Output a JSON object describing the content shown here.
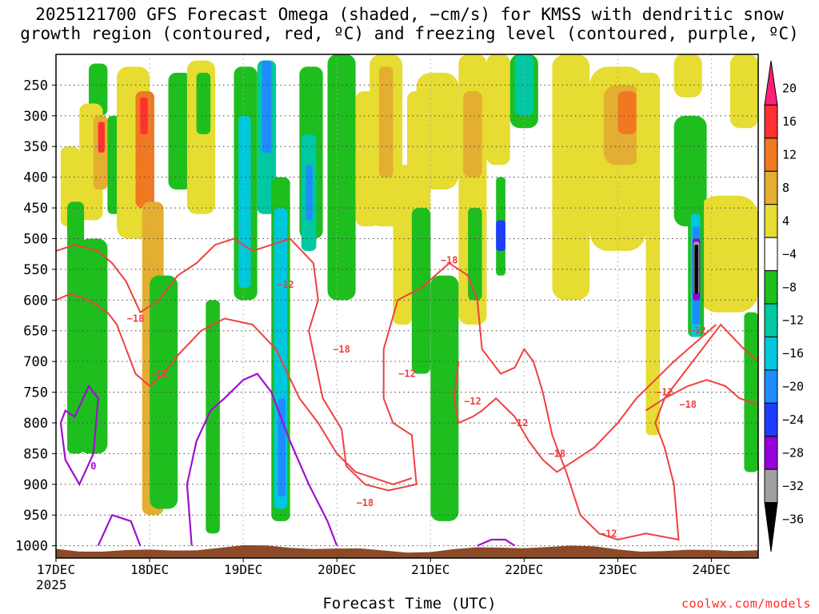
{
  "title_line1": "2025121700 GFS Forecast Omega (shaded, −cm/s) for KMSS with dendritic snow",
  "title_line2": "growth region (contoured, red, ºC) and freezing level (contoured, purple, ºC)",
  "credit": "coolwx.com/models",
  "chart_data": {
    "type": "heatmap",
    "title": "2025121700 GFS Forecast Omega (shaded, −cm/s) for KMSS with dendritic snow growth region (contoured, red, ºC) and freezing level (contoured, purple, ºC)",
    "xlabel": "Forecast Time (UTC)",
    "year_label": "2025",
    "x_ticks": [
      "17DEC",
      "18DEC",
      "19DEC",
      "20DEC",
      "21DEC",
      "22DEC",
      "23DEC",
      "24DEC"
    ],
    "x_range_days": [
      0,
      7.5
    ],
    "y_ticks": [
      250,
      300,
      350,
      400,
      450,
      500,
      550,
      600,
      650,
      700,
      750,
      800,
      850,
      900,
      950,
      1000
    ],
    "y_range_hpa": [
      200,
      1020
    ],
    "colorbar": {
      "labels": [
        "20",
        "16",
        "12",
        "8",
        "4",
        "−4",
        "−8",
        "−12",
        "−16",
        "−20",
        "−24",
        "−28",
        "−32",
        "−36"
      ],
      "colors": [
        "#ff1e78",
        "#ff3030",
        "#f07820",
        "#e4ae30",
        "#e6dc32",
        "#ffffff",
        "#1ebe1e",
        "#00c8a0",
        "#00c8dc",
        "#1e8cff",
        "#1e3cff",
        "#9600dc",
        "#a0a0a0",
        "#000000"
      ]
    },
    "contour_labels": {
      "red": [
        "−18",
        "−12",
        "−12",
        "−18",
        "−18",
        "−12",
        "−12",
        "−12",
        "−18",
        "−12",
        "−12",
        "−18",
        "−12",
        "−18"
      ],
      "purple": [
        "0"
      ]
    },
    "shaded_regions": [
      {
        "t0": 0.35,
        "t1": 0.55,
        "p0": 215,
        "p1": 300,
        "c": "#1ebe1e"
      },
      {
        "t0": 0.25,
        "t1": 0.5,
        "p0": 280,
        "p1": 470,
        "c": "#e6dc32"
      },
      {
        "t0": 0.4,
        "t1": 0.55,
        "p0": 300,
        "p1": 420,
        "c": "#e4ae30"
      },
      {
        "t0": 0.45,
        "t1": 0.52,
        "p0": 310,
        "p1": 360,
        "c": "#ff3030"
      },
      {
        "t0": 0.55,
        "t1": 0.7,
        "p0": 300,
        "p1": 460,
        "c": "#1ebe1e"
      },
      {
        "t0": 0.05,
        "t1": 0.25,
        "p0": 350,
        "p1": 480,
        "c": "#e6dc32"
      },
      {
        "t0": 0.12,
        "t1": 0.3,
        "p0": 440,
        "p1": 850,
        "c": "#1ebe1e"
      },
      {
        "t0": 0.25,
        "t1": 0.55,
        "p0": 500,
        "p1": 850,
        "c": "#1ebe1e"
      },
      {
        "t0": 0.65,
        "t1": 1.0,
        "p0": 220,
        "p1": 500,
        "c": "#e6dc32"
      },
      {
        "t0": 0.85,
        "t1": 1.05,
        "p0": 260,
        "p1": 450,
        "c": "#f07820"
      },
      {
        "t0": 0.9,
        "t1": 0.98,
        "p0": 270,
        "p1": 330,
        "c": "#ff3030"
      },
      {
        "t0": 0.92,
        "t1": 1.15,
        "p0": 440,
        "p1": 950,
        "c": "#e4ae30"
      },
      {
        "t0": 1.2,
        "t1": 1.45,
        "p0": 230,
        "p1": 420,
        "c": "#1ebe1e"
      },
      {
        "t0": 1.0,
        "t1": 1.3,
        "p0": 560,
        "p1": 940,
        "c": "#1ebe1e"
      },
      {
        "t0": 1.4,
        "t1": 1.7,
        "p0": 210,
        "p1": 460,
        "c": "#e6dc32"
      },
      {
        "t0": 1.5,
        "t1": 1.65,
        "p0": 230,
        "p1": 330,
        "c": "#1ebe1e"
      },
      {
        "t0": 1.6,
        "t1": 1.75,
        "p0": 600,
        "p1": 980,
        "c": "#1ebe1e"
      },
      {
        "t0": 1.9,
        "t1": 2.15,
        "p0": 220,
        "p1": 600,
        "c": "#1ebe1e"
      },
      {
        "t0": 1.95,
        "t1": 2.08,
        "p0": 300,
        "p1": 580,
        "c": "#00c8dc"
      },
      {
        "t0": 2.15,
        "t1": 2.35,
        "p0": 210,
        "p1": 460,
        "c": "#00c8a0"
      },
      {
        "t0": 2.2,
        "t1": 2.3,
        "p0": 210,
        "p1": 360,
        "c": "#1e8cff"
      },
      {
        "t0": 2.3,
        "t1": 2.5,
        "p0": 400,
        "p1": 960,
        "c": "#1ebe1e"
      },
      {
        "t0": 2.33,
        "t1": 2.47,
        "p0": 450,
        "p1": 940,
        "c": "#00c8dc"
      },
      {
        "t0": 2.37,
        "t1": 2.45,
        "p0": 760,
        "p1": 920,
        "c": "#1e8cff"
      },
      {
        "t0": 2.6,
        "t1": 2.85,
        "p0": 220,
        "p1": 500,
        "c": "#1ebe1e"
      },
      {
        "t0": 2.62,
        "t1": 2.78,
        "p0": 330,
        "p1": 520,
        "c": "#00c8a0"
      },
      {
        "t0": 2.67,
        "t1": 2.74,
        "p0": 380,
        "p1": 470,
        "c": "#1e8cff"
      },
      {
        "t0": 2.9,
        "t1": 3.2,
        "p0": 200,
        "p1": 600,
        "c": "#1ebe1e"
      },
      {
        "t0": 3.2,
        "t1": 3.45,
        "p0": 260,
        "p1": 480,
        "c": "#e6dc32"
      },
      {
        "t0": 3.35,
        "t1": 3.7,
        "p0": 200,
        "p1": 480,
        "c": "#e6dc32"
      },
      {
        "t0": 3.45,
        "t1": 3.6,
        "p0": 220,
        "p1": 400,
        "c": "#e4ae30"
      },
      {
        "t0": 3.6,
        "t1": 3.8,
        "p0": 380,
        "p1": 640,
        "c": "#e6dc32"
      },
      {
        "t0": 3.75,
        "t1": 4.0,
        "p0": 260,
        "p1": 460,
        "c": "#e6dc32"
      },
      {
        "t0": 3.8,
        "t1": 4.0,
        "p0": 450,
        "p1": 720,
        "c": "#1ebe1e"
      },
      {
        "t0": 3.85,
        "t1": 4.3,
        "p0": 230,
        "p1": 420,
        "c": "#e6dc32"
      },
      {
        "t0": 4.0,
        "t1": 4.3,
        "p0": 560,
        "p1": 960,
        "c": "#1ebe1e"
      },
      {
        "t0": 4.3,
        "t1": 4.6,
        "p0": 200,
        "p1": 640,
        "c": "#e6dc32"
      },
      {
        "t0": 4.35,
        "t1": 4.55,
        "p0": 260,
        "p1": 400,
        "c": "#e4ae30"
      },
      {
        "t0": 4.4,
        "t1": 4.55,
        "p0": 450,
        "p1": 600,
        "c": "#1ebe1e"
      },
      {
        "t0": 4.6,
        "t1": 4.85,
        "p0": 200,
        "p1": 380,
        "c": "#e6dc32"
      },
      {
        "t0": 4.7,
        "t1": 4.8,
        "p0": 400,
        "p1": 560,
        "c": "#1ebe1e"
      },
      {
        "t0": 4.7,
        "t1": 4.8,
        "p0": 470,
        "p1": 520,
        "c": "#1e3cff"
      },
      {
        "t0": 4.85,
        "t1": 5.15,
        "p0": 200,
        "p1": 320,
        "c": "#1ebe1e"
      },
      {
        "t0": 4.9,
        "t1": 5.1,
        "p0": 200,
        "p1": 300,
        "c": "#00c8a0"
      },
      {
        "t0": 5.3,
        "t1": 5.7,
        "p0": 200,
        "p1": 600,
        "c": "#e6dc32"
      },
      {
        "t0": 5.7,
        "t1": 6.3,
        "p0": 220,
        "p1": 520,
        "c": "#e6dc32"
      },
      {
        "t0": 5.85,
        "t1": 6.25,
        "p0": 250,
        "p1": 380,
        "c": "#e4ae30"
      },
      {
        "t0": 6.0,
        "t1": 6.2,
        "p0": 260,
        "p1": 330,
        "c": "#f07820"
      },
      {
        "t0": 6.2,
        "t1": 6.45,
        "p0": 230,
        "p1": 420,
        "c": "#e6dc32"
      },
      {
        "t0": 6.3,
        "t1": 6.45,
        "p0": 380,
        "p1": 820,
        "c": "#e6dc32"
      },
      {
        "t0": 6.6,
        "t1": 6.95,
        "p0": 300,
        "p1": 480,
        "c": "#1ebe1e"
      },
      {
        "t0": 6.85,
        "t1": 7.5,
        "p0": 430,
        "p1": 620,
        "c": "#e6dc32"
      },
      {
        "t0": 6.75,
        "t1": 6.92,
        "p0": 430,
        "p1": 660,
        "c": "#1ebe1e"
      },
      {
        "t0": 6.78,
        "t1": 6.88,
        "p0": 460,
        "p1": 660,
        "c": "#00c8dc"
      },
      {
        "t0": 6.8,
        "t1": 6.88,
        "p0": 480,
        "p1": 640,
        "c": "#1e8cff"
      },
      {
        "t0": 6.8,
        "t1": 6.88,
        "p0": 500,
        "p1": 600,
        "c": "#9600dc"
      },
      {
        "t0": 6.81,
        "t1": 6.87,
        "p0": 505,
        "p1": 590,
        "c": "#a0a0a0"
      },
      {
        "t0": 6.82,
        "t1": 6.86,
        "p0": 510,
        "p1": 590,
        "c": "#000000"
      },
      {
        "t0": 6.6,
        "t1": 6.9,
        "p0": 200,
        "p1": 270,
        "c": "#e6dc32"
      },
      {
        "t0": 7.2,
        "t1": 7.5,
        "p0": 200,
        "p1": 320,
        "c": "#e6dc32"
      },
      {
        "t0": 7.35,
        "t1": 7.5,
        "p0": 620,
        "p1": 880,
        "c": "#1ebe1e"
      }
    ],
    "freezing_contours": [
      [
        [
          0.05,
          800
        ],
        [
          0.1,
          860
        ],
        [
          0.25,
          900
        ],
        [
          0.4,
          850
        ],
        [
          0.45,
          760
        ],
        [
          0.35,
          740
        ],
        [
          0.2,
          790
        ],
        [
          0.1,
          780
        ],
        [
          0.05,
          800
        ]
      ],
      [
        [
          0.45,
          1000
        ],
        [
          0.6,
          950
        ],
        [
          0.8,
          960
        ],
        [
          0.9,
          1000
        ]
      ],
      [
        [
          1.45,
          1000
        ],
        [
          1.4,
          900
        ],
        [
          1.5,
          830
        ],
        [
          1.65,
          780
        ],
        [
          1.8,
          760
        ],
        [
          2.0,
          730
        ],
        [
          2.15,
          720
        ],
        [
          2.3,
          750
        ],
        [
          2.5,
          830
        ],
        [
          2.7,
          900
        ],
        [
          2.9,
          960
        ],
        [
          3.0,
          1000
        ]
      ],
      [
        [
          4.5,
          1000
        ],
        [
          4.65,
          990
        ],
        [
          4.8,
          990
        ],
        [
          4.9,
          1000
        ]
      ]
    ],
    "snow_growth_contours": [
      [
        [
          0.0,
          520
        ],
        [
          0.2,
          510
        ],
        [
          0.45,
          520
        ],
        [
          0.6,
          540
        ],
        [
          0.75,
          570
        ],
        [
          0.9,
          620
        ],
        [
          1.1,
          600
        ],
        [
          1.3,
          560
        ],
        [
          1.5,
          540
        ],
        [
          1.7,
          510
        ],
        [
          1.9,
          500
        ],
        [
          2.1,
          520
        ],
        [
          2.3,
          510
        ],
        [
          2.5,
          500
        ],
        [
          2.75,
          540
        ],
        [
          2.8,
          600
        ],
        [
          2.7,
          650
        ],
        [
          2.85,
          760
        ],
        [
          3.05,
          810
        ],
        [
          3.1,
          870
        ],
        [
          3.3,
          900
        ],
        [
          3.55,
          910
        ],
        [
          3.85,
          900
        ],
        [
          3.8,
          820
        ],
        [
          3.6,
          800
        ],
        [
          3.5,
          760
        ],
        [
          3.5,
          680
        ],
        [
          3.65,
          600
        ],
        [
          3.9,
          580
        ],
        [
          4.05,
          560
        ],
        [
          4.2,
          540
        ],
        [
          4.4,
          560
        ],
        [
          4.5,
          600
        ],
        [
          4.55,
          680
        ],
        [
          4.75,
          720
        ],
        [
          4.9,
          710
        ],
        [
          5.0,
          680
        ],
        [
          5.1,
          700
        ],
        [
          5.2,
          750
        ],
        [
          5.3,
          820
        ],
        [
          5.45,
          880
        ],
        [
          5.6,
          950
        ],
        [
          5.8,
          980
        ],
        [
          6.0,
          990
        ],
        [
          6.3,
          980
        ],
        [
          6.65,
          990
        ],
        [
          6.6,
          900
        ],
        [
          6.5,
          840
        ],
        [
          6.4,
          800
        ],
        [
          6.5,
          760
        ],
        [
          6.7,
          720
        ],
        [
          6.9,
          680
        ],
        [
          7.1,
          640
        ],
        [
          7.35,
          680
        ],
        [
          7.5,
          700
        ]
      ],
      [
        [
          0.0,
          600
        ],
        [
          0.15,
          590
        ],
        [
          0.35,
          600
        ],
        [
          0.55,
          620
        ],
        [
          0.65,
          640
        ],
        [
          0.75,
          680
        ],
        [
          0.85,
          720
        ],
        [
          1.0,
          740
        ],
        [
          1.15,
          720
        ],
        [
          1.3,
          690
        ],
        [
          1.55,
          650
        ],
        [
          1.8,
          630
        ],
        [
          2.1,
          640
        ],
        [
          2.35,
          680
        ],
        [
          2.6,
          760
        ],
        [
          2.8,
          800
        ],
        [
          3.0,
          850
        ],
        [
          3.2,
          880
        ],
        [
          3.4,
          890
        ],
        [
          3.6,
          900
        ],
        [
          3.8,
          890
        ]
      ],
      [
        [
          4.3,
          700
        ],
        [
          4.25,
          760
        ],
        [
          4.3,
          800
        ],
        [
          4.45,
          790
        ],
        [
          4.55,
          780
        ],
        [
          4.7,
          760
        ],
        [
          4.9,
          790
        ],
        [
          5.05,
          830
        ],
        [
          5.2,
          860
        ],
        [
          5.35,
          880
        ],
        [
          5.55,
          860
        ],
        [
          5.75,
          840
        ],
        [
          6.0,
          800
        ],
        [
          6.2,
          760
        ],
        [
          6.4,
          730
        ],
        [
          6.6,
          700
        ],
        [
          6.9,
          660
        ],
        [
          7.05,
          640
        ]
      ],
      [
        [
          6.3,
          780
        ],
        [
          6.5,
          760
        ],
        [
          6.75,
          740
        ],
        [
          6.95,
          730
        ],
        [
          7.15,
          740
        ],
        [
          7.3,
          760
        ],
        [
          7.5,
          770
        ]
      ]
    ],
    "terrain_pressure_hpa": 1005
  }
}
